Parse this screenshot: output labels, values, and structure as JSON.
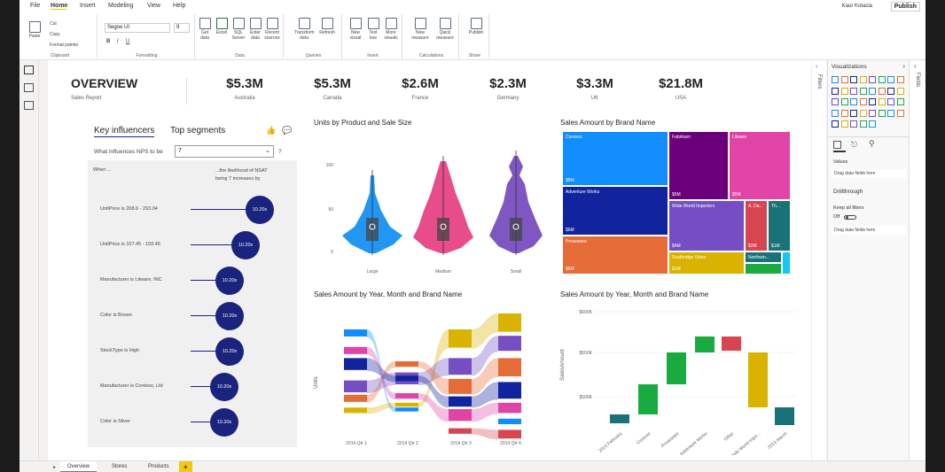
{
  "menu": {
    "items": [
      "File",
      "Home",
      "Insert",
      "Modeling",
      "View",
      "Help"
    ],
    "active": "Home",
    "user": "Kaur Kotacia",
    "publish": "Publish"
  },
  "ribbon": {
    "clipboard": {
      "label": "Clipboard",
      "paste": "Paste",
      "cut": "Cut",
      "copy": "Copy",
      "format_painter": "Format painter"
    },
    "formatting": {
      "label": "Formatting",
      "font": "Segoe UI",
      "size": "9"
    },
    "data": {
      "label": "Data",
      "buttons": [
        "Get data",
        "Excel",
        "SQL Server",
        "Enter data",
        "Recent sources"
      ]
    },
    "queries": {
      "label": "Queries",
      "buttons": [
        "Transform data",
        "Refresh"
      ]
    },
    "insert": {
      "label": "Insert",
      "buttons": [
        "New visual",
        "Text box",
        "More visuals"
      ]
    },
    "calculations": {
      "label": "Calculations",
      "buttons": [
        "New measure",
        "Quick measure"
      ]
    },
    "share": {
      "label": "Share",
      "buttons": [
        "Publish"
      ]
    }
  },
  "header": {
    "title": "OVERVIEW",
    "subtitle": "Sales Report"
  },
  "kpis": [
    {
      "value": "$5.3M",
      "label": "Australia"
    },
    {
      "value": "$5.3M",
      "label": "Canada"
    },
    {
      "value": "$2.6M",
      "label": "France"
    },
    {
      "value": "$2.3M",
      "label": "Germany"
    },
    {
      "value": "$3.3M",
      "label": "UK"
    },
    {
      "value": "$21.8M",
      "label": "USA"
    }
  ],
  "key_influencers": {
    "tab1": "Key influencers",
    "tab2": "Top segments",
    "question": "What influences NPS to be",
    "value": "7",
    "help": "?",
    "col_when": "When ...",
    "col_likelihood": "...the likelihood of NSAT being 7 increases by",
    "rows": [
      {
        "label": "UnitPrice is 208.6 - 293.04",
        "value": "10.20x"
      },
      {
        "label": "UnitPrice is 107.45 - 193.45",
        "value": "10.20x"
      },
      {
        "label": "Manufacturer is Litware, INC",
        "value": "10.20x"
      },
      {
        "label": "Color is Brown",
        "value": "10.20x"
      },
      {
        "label": "StockType is High",
        "value": "10.20x"
      },
      {
        "label": "Manufacturer is Contoso, Ltd",
        "value": "10.20x"
      },
      {
        "label": "Color is Silver",
        "value": "10.20x"
      }
    ]
  },
  "violin": {
    "title": "Units by Product and Sale Size",
    "yticks": [
      "100",
      "50",
      "0"
    ],
    "categories": [
      "Large",
      "Medium",
      "Small"
    ],
    "colors": [
      "#2196f3",
      "#e84c8b",
      "#7e57c2"
    ]
  },
  "treemap": {
    "title": "Sales Amount by Brand Name",
    "tiles": [
      {
        "name": "Contoso",
        "value": "$9M",
        "color": "#118dff"
      },
      {
        "name": "Adventure Works",
        "value": "$6M",
        "color": "#12239e"
      },
      {
        "name": "Proseware",
        "value": "$5M",
        "color": "#e66c37"
      },
      {
        "name": "Fabrikam",
        "value": "$5M",
        "color": "#6b007b"
      },
      {
        "name": "Litware",
        "value": "$5M",
        "color": "#e044a7"
      },
      {
        "name": "Wide World Importers",
        "value": "$4M",
        "color": "#744ec2"
      },
      {
        "name": "A. Da...",
        "value": "$2M",
        "color": "#d9b300"
      },
      {
        "name": "Th...",
        "value": "$1M",
        "color": "#d64550"
      },
      {
        "name": "Southridge Video",
        "value": "$1M",
        "color": "#d9b300"
      },
      {
        "name": "Northwin...",
        "value": "",
        "color": "#197278"
      },
      {
        "name": "",
        "value": "",
        "color": "#1aab40"
      },
      {
        "name": "",
        "value": "",
        "color": "#15c6f4"
      }
    ]
  },
  "ribbon_chart": {
    "title": "Sales Amount by Year, Month and Brand Name",
    "ylabel": "Units",
    "categories": [
      "2014 Qtr 1",
      "2014 Qtr 2",
      "2014 Qtr 3",
      "2014 Qtr 4"
    ]
  },
  "waterfall": {
    "title": "Sales Amount by Year, Month and Brand Name",
    "ylabel": "SalesAmount",
    "yticks": [
      "$600K",
      "$550K",
      "$500K"
    ],
    "categories": [
      "2013 February",
      "Contoso",
      "Proseware",
      "Adventure Works",
      "Other",
      "Wide World Impo...",
      "2013 March"
    ]
  },
  "viz_pane": {
    "title": "Visualizations",
    "values_label": "Values",
    "drag1": "Drag data fields here",
    "drillthrough": "Drillthrough",
    "keep_filters": "Keep all filters",
    "toggle": "Off",
    "drag2": "Drag data fields here"
  },
  "fields_label": "Fields",
  "filters_label": "Filters",
  "tabs": [
    "Overview",
    "Stores",
    "Products"
  ],
  "add_tab": "+"
}
